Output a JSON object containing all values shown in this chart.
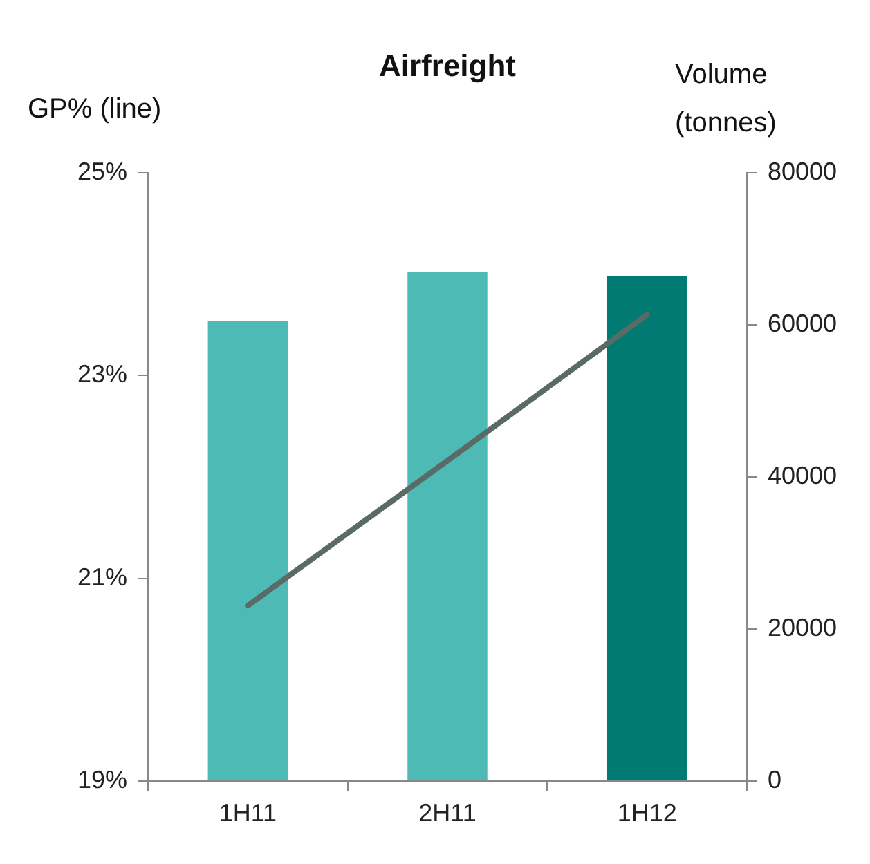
{
  "chart_data": {
    "type": "bar",
    "title": "Airfreight",
    "ylabel": "GP% (line)",
    "y2label": "Volume (tonnes)",
    "categories": [
      "1H11",
      "2H11",
      "1H12"
    ],
    "series": [
      {
        "axis": "y2",
        "colors": [
          "#4dbab5",
          "#4dbab5",
          "#007a73"
        ],
        "values": [
          60500,
          67000,
          66400
        ]
      },
      {
        "type": "line",
        "axis": "y",
        "color": "#5a6b66",
        "values": [
          20.73,
          22.16,
          23.6
        ]
      }
    ],
    "ylim": [
      19,
      25
    ],
    "yticks": [
      {
        "value": 19,
        "label": "19%"
      },
      {
        "value": 21,
        "label": "21%"
      },
      {
        "value": 23,
        "label": "23%"
      },
      {
        "value": 25,
        "label": "25%"
      }
    ],
    "y2lim": [
      0,
      80000
    ],
    "y2ticks": [
      0,
      20000,
      40000,
      60000,
      80000
    ],
    "grid": false,
    "legend": false
  }
}
